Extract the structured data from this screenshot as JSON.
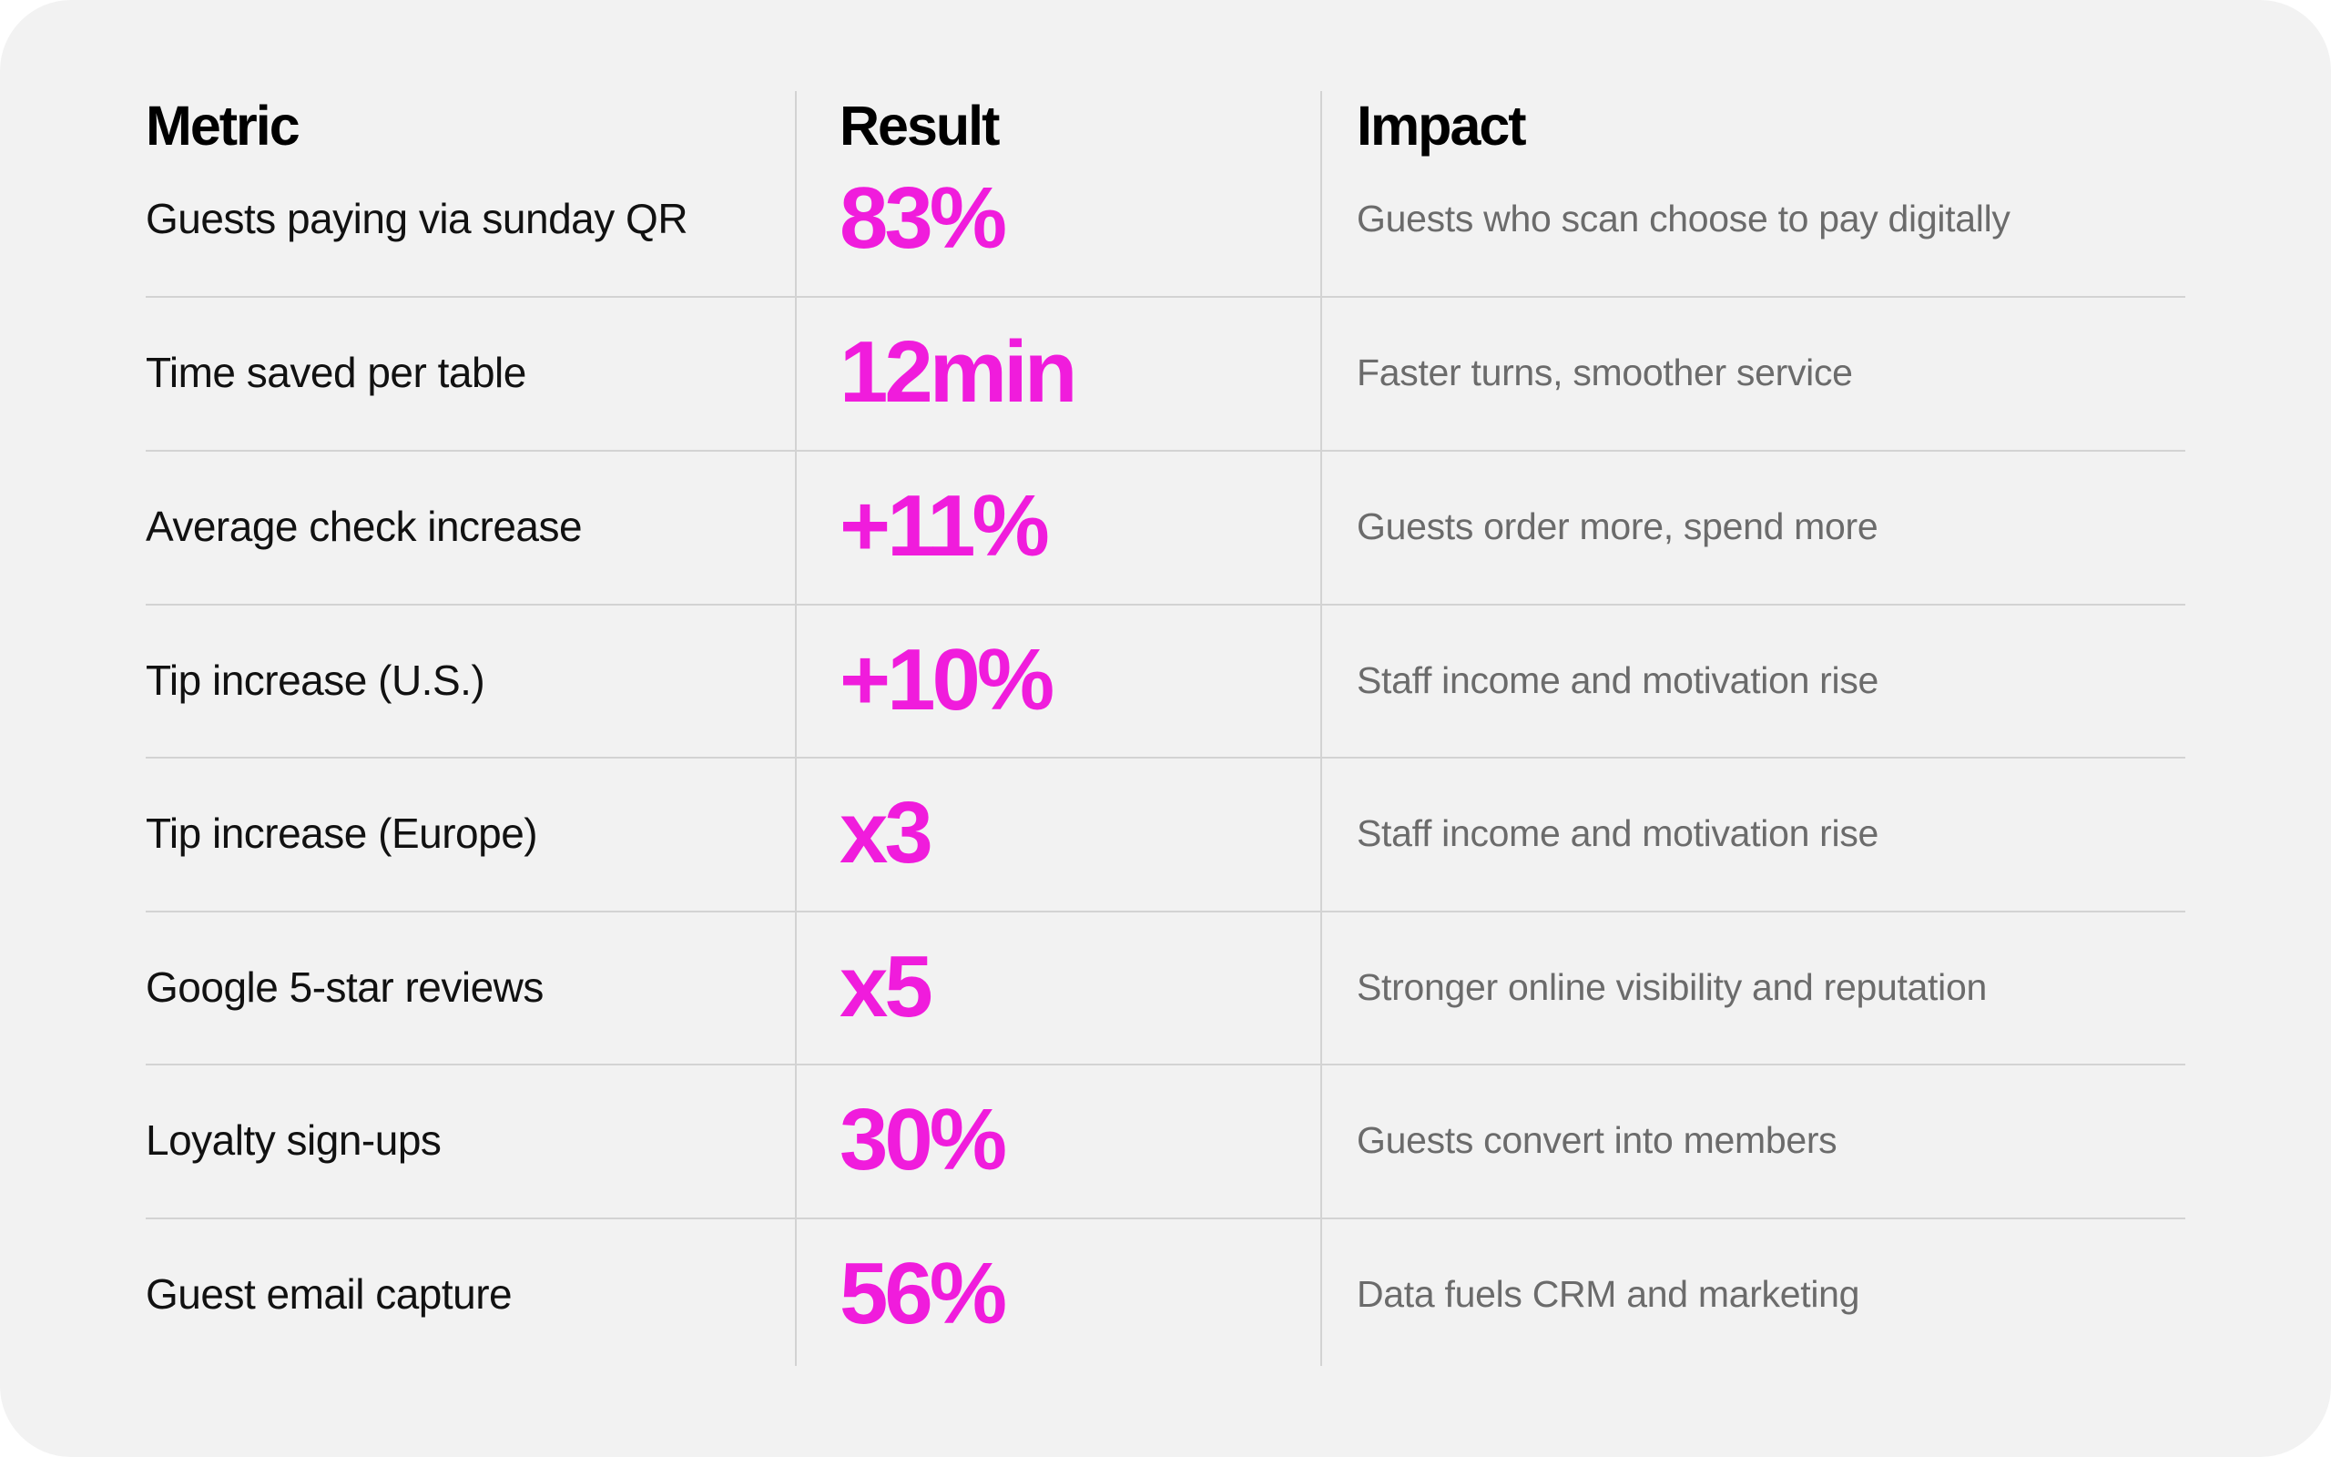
{
  "headers": {
    "metric": "Metric",
    "result": "Result",
    "impact": "Impact"
  },
  "colors": {
    "background": "#f2f2f2",
    "accent": "#f01cdc",
    "impact_text": "#6b6b6b",
    "divider": "#d3d3d3"
  },
  "rows": [
    {
      "metric": "Guests paying via sunday QR",
      "result": "83%",
      "impact": "Guests who scan choose to pay digitally"
    },
    {
      "metric": "Time saved per table",
      "result": "12min",
      "impact": "Faster turns, smoother service"
    },
    {
      "metric": "Average check increase",
      "result": "+11%",
      "impact": "Guests order more, spend more"
    },
    {
      "metric": "Tip increase (U.S.)",
      "result": "+10%",
      "impact": "Staff income and motivation rise"
    },
    {
      "metric": "Tip increase (Europe)",
      "result": "x3",
      "impact": "Staff income and motivation rise"
    },
    {
      "metric": "Google 5-star reviews",
      "result": "x5",
      "impact": "Stronger online visibility and reputation"
    },
    {
      "metric": "Loyalty sign-ups",
      "result": "30%",
      "impact": "Guests convert into members"
    },
    {
      "metric": "Guest email capture",
      "result": "56%",
      "impact": "Data fuels CRM and marketing"
    }
  ]
}
